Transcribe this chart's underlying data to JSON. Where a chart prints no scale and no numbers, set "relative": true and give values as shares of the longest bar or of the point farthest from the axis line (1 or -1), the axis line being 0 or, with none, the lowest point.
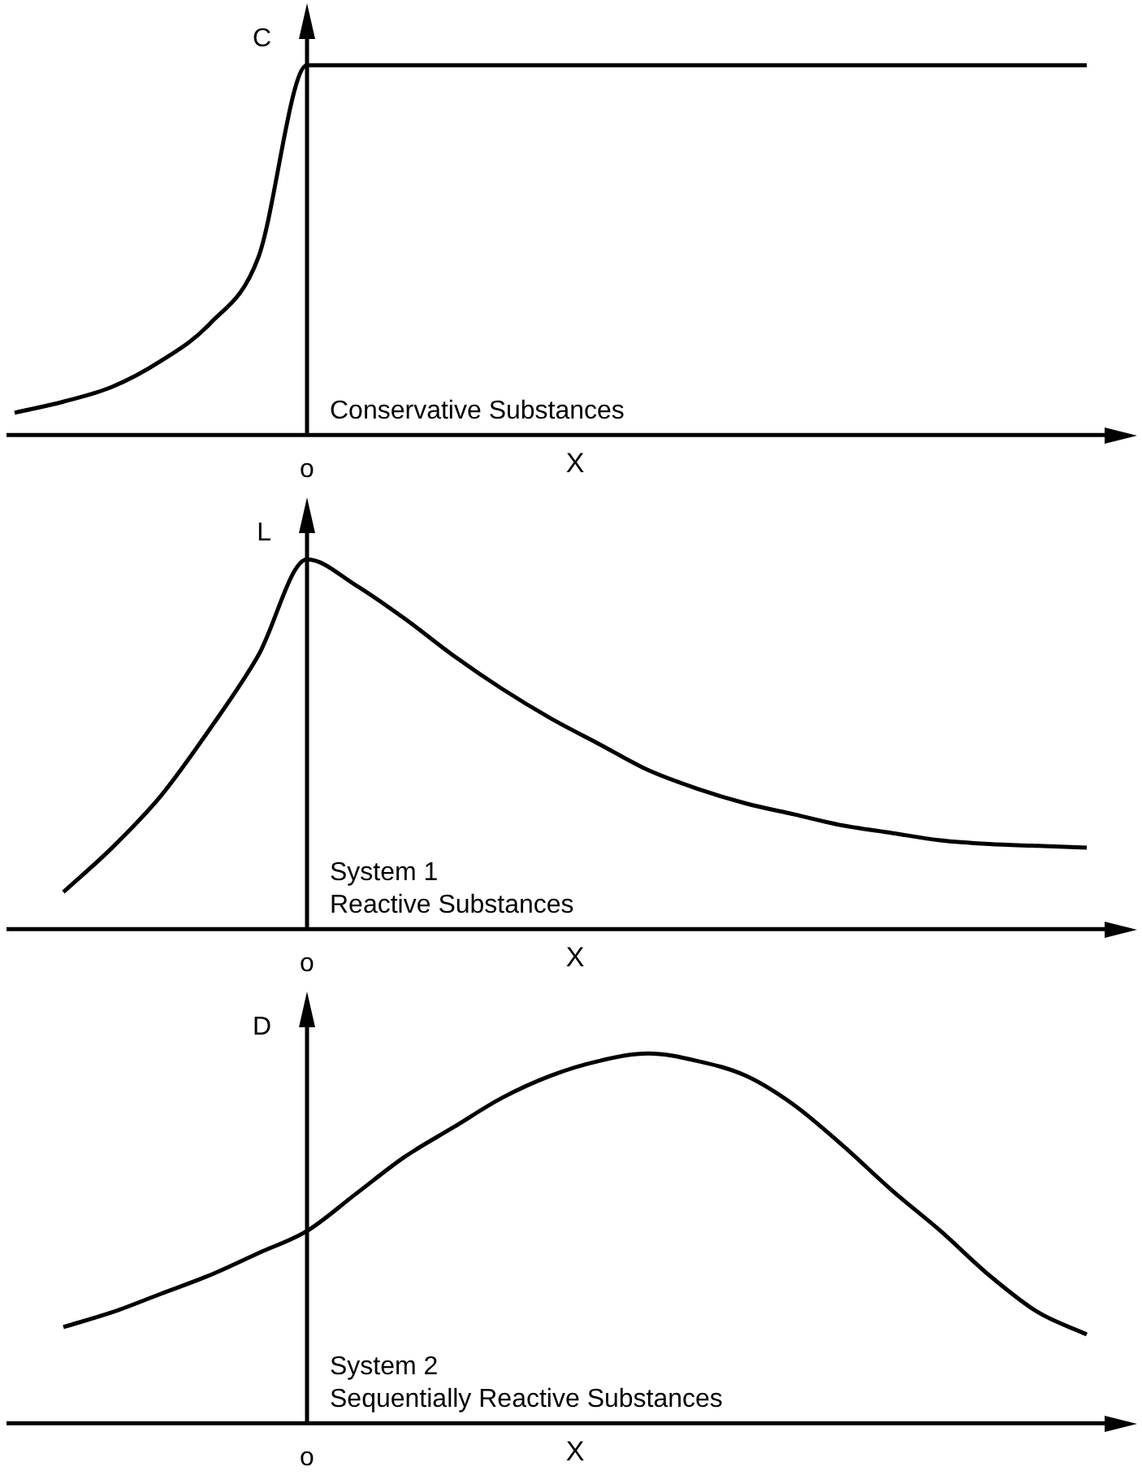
{
  "chart_data": [
    {
      "type": "line",
      "relative": true,
      "ylabel": "C",
      "xlabel": "X",
      "annotations": [
        "o",
        "Conservative Substances"
      ],
      "categories": [
        null,
        null,
        null,
        null,
        null,
        null,
        null,
        null,
        null,
        null,
        null,
        null,
        null,
        null,
        null,
        null,
        null,
        null,
        null,
        null,
        null,
        null,
        null,
        null
      ],
      "series": [
        {
          "color": "#000000",
          "values": [
            0.06,
            0.09,
            0.13,
            0.2,
            0.3,
            0.48,
            1,
            1,
            1,
            1,
            1,
            1,
            1,
            1,
            1,
            1,
            1,
            1,
            1,
            1,
            1,
            1,
            1,
            null
          ]
        }
      ]
    },
    {
      "type": "line",
      "relative": true,
      "ylabel": "L",
      "xlabel": "X",
      "annotations": [
        "o",
        "System 1",
        "Reactive Substances"
      ],
      "categories": [
        null,
        null,
        null,
        null,
        null,
        null,
        null,
        null,
        null,
        null,
        null,
        null,
        null,
        null,
        null,
        null,
        null,
        null,
        null,
        null,
        null,
        null,
        null,
        null
      ],
      "series": [
        {
          "color": "#000000",
          "values": [
            null,
            0.1,
            0.22,
            0.36,
            0.54,
            0.74,
            1,
            0.93,
            0.84,
            0.74,
            0.65,
            0.57,
            0.5,
            0.43,
            0.38,
            0.34,
            0.31,
            0.28,
            0.26,
            0.24,
            0.23,
            0.225,
            0.22,
            null
          ]
        }
      ]
    },
    {
      "type": "line",
      "relative": true,
      "ylabel": "D",
      "xlabel": "X",
      "annotations": [
        "o",
        "System 2",
        "Sequentially Reactive Substances"
      ],
      "categories": [
        null,
        null,
        null,
        null,
        null,
        null,
        null,
        null,
        null,
        null,
        null,
        null,
        null,
        null,
        null,
        null,
        null,
        null,
        null,
        null,
        null,
        null,
        null,
        null
      ],
      "series": [
        {
          "color": "#000000",
          "values": [
            null,
            0.26,
            0.3,
            0.35,
            0.4,
            0.46,
            0.52,
            0.62,
            0.72,
            0.8,
            0.88,
            0.94,
            0.98,
            1,
            0.98,
            0.94,
            0.86,
            0.75,
            0.63,
            0.52,
            0.4,
            0.3,
            0.24,
            null
          ]
        }
      ]
    }
  ]
}
